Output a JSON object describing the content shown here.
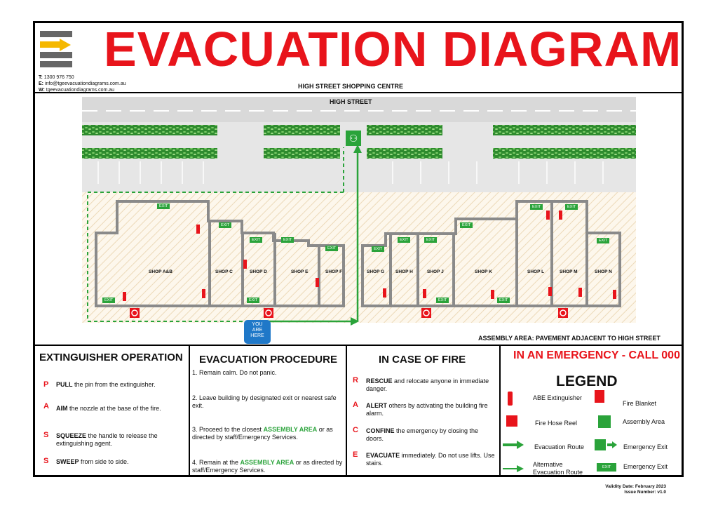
{
  "header": {
    "title": "EVACUATION DIAGRAM",
    "contact_t_label": "T:",
    "contact_t": "1300 976 750",
    "contact_e_label": "E:",
    "contact_e": "info@tgeevacuationdiagrams.com.au",
    "contact_w_label": "W:",
    "contact_w": "tgeevacuationdiagrams.com.au",
    "building": "HIGH STREET SHOPPING CENTRE"
  },
  "map": {
    "street": "HIGH STREET",
    "exit_label": "EXIT",
    "you_are_here": [
      "YOU",
      "ARE",
      "HERE"
    ],
    "assembly_area": "ASSEMBLY AREA: PAVEMENT ADJACENT TO HIGH STREET",
    "shops": [
      "SHOP A&B",
      "SHOP C",
      "SHOP D",
      "SHOP E",
      "SHOP F",
      "SHOP G",
      "SHOP H",
      "SHOP J",
      "SHOP K",
      "SHOP L",
      "SHOP M",
      "SHOP N"
    ]
  },
  "extinguisher": {
    "heading": "EXTINGUISHER OPERATION",
    "steps": [
      {
        "letter": "P",
        "bold": "PULL",
        "text": " the pin from the extinguisher."
      },
      {
        "letter": "A",
        "bold": "AIM",
        "text": "  the nozzle at the base of the fire."
      },
      {
        "letter": "S",
        "bold": "SQUEEZE",
        "text": " the handle to release the extinguishing agent."
      },
      {
        "letter": "S",
        "bold": "SWEEP",
        "text": " from side to side."
      }
    ]
  },
  "procedure": {
    "heading": "EVACUATION PROCEDURE",
    "step1": "1. Remain calm. Do not panic.",
    "step2": "2. Leave building by designated exit or nearest safe exit.",
    "step3a": "3. Proceed to the closest ",
    "step3b": "ASSEMBLY AREA",
    "step3c": " or as directed by staff/Emergency Services.",
    "step4a": "4. Remain at the ",
    "step4b": "ASSEMBLY AREA",
    "step4c": " or as directed by staff/Emergency Services."
  },
  "fire": {
    "heading": "IN CASE OF FIRE",
    "steps": [
      {
        "letter": "R",
        "bold": "RESCUE",
        "text": " and relocate anyone in immediate danger."
      },
      {
        "letter": "A",
        "bold": "ALERT",
        "text": " others by activating the building fire alarm."
      },
      {
        "letter": "C",
        "bold": "CONFINE",
        "text": " the emergency by closing the doors."
      },
      {
        "letter": "E",
        "bold": "EVACUATE",
        "text": " immediately. Do not use lifts. Use stairs."
      }
    ]
  },
  "legend": {
    "emergency": "IN AN EMERGENCY - CALL 000",
    "heading": "LEGEND",
    "abe": "ABE Extinguisher",
    "blanket": "Fire Blanket",
    "hose": "Fire Hose Reel",
    "assembly": "Assembly Area",
    "route": "Evacuation Route",
    "exit": "Emergency Exit",
    "alt_route": "Alternative Evacuation Route",
    "exit2": "Emergency Exit",
    "exit_sign": "EXIT"
  },
  "footer": {
    "validity": "Validity Date: February 2023",
    "issue": "Issue Number: v1.0"
  },
  "colors": {
    "red": "#e8141b",
    "green": "#2aa33a",
    "wall": "#8a8a8a",
    "hedge": "#2e8b2e"
  }
}
